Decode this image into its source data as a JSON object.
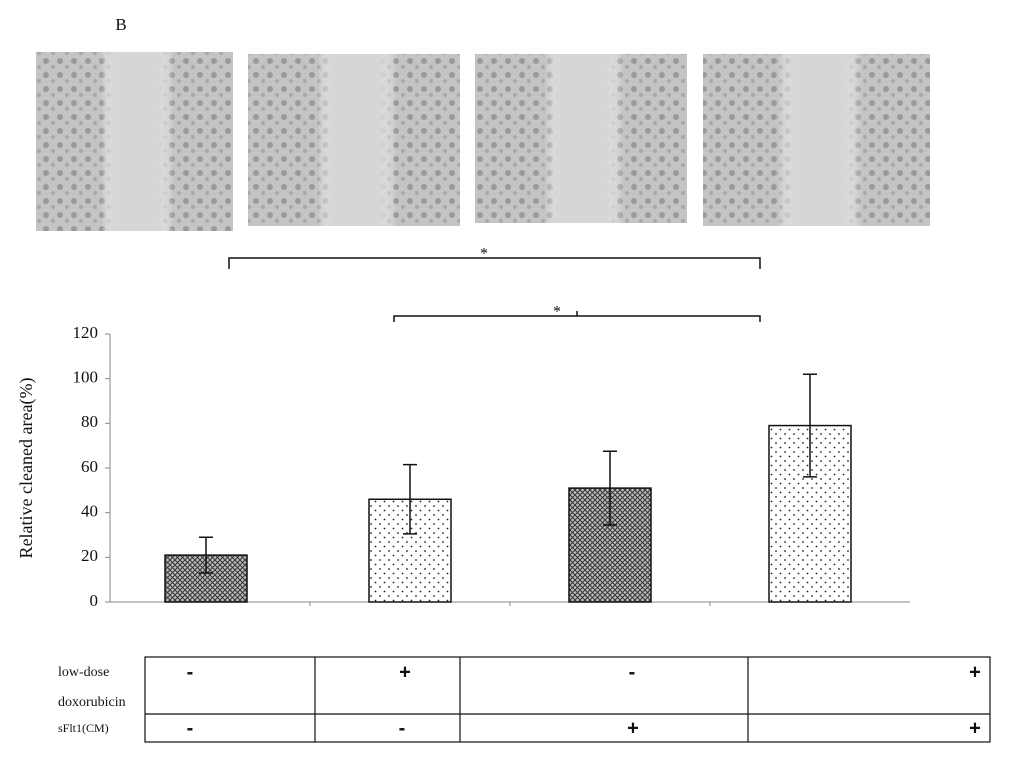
{
  "panel_label": "B",
  "chart_data": {
    "type": "bar",
    "ylabel": "Relative cleaned area(%)",
    "values": [
      21,
      46,
      51,
      79
    ],
    "errors": [
      8,
      15.5,
      16.5,
      23
    ],
    "patterns": [
      "crosshatch",
      "dots",
      "crosshatch",
      "dots"
    ],
    "ylim": [
      0,
      120
    ],
    "yticks": [
      0,
      20,
      40,
      60,
      80,
      100,
      120
    ],
    "annotations": [
      "*",
      "*"
    ]
  },
  "table": {
    "row_labels": [
      [
        "low-dose",
        "doxorubicin"
      ],
      [
        "sFlt1(CM)"
      ]
    ],
    "cells": [
      [
        "-",
        "+",
        "-",
        "+"
      ],
      [
        "-",
        "-",
        "+",
        "+"
      ]
    ]
  }
}
